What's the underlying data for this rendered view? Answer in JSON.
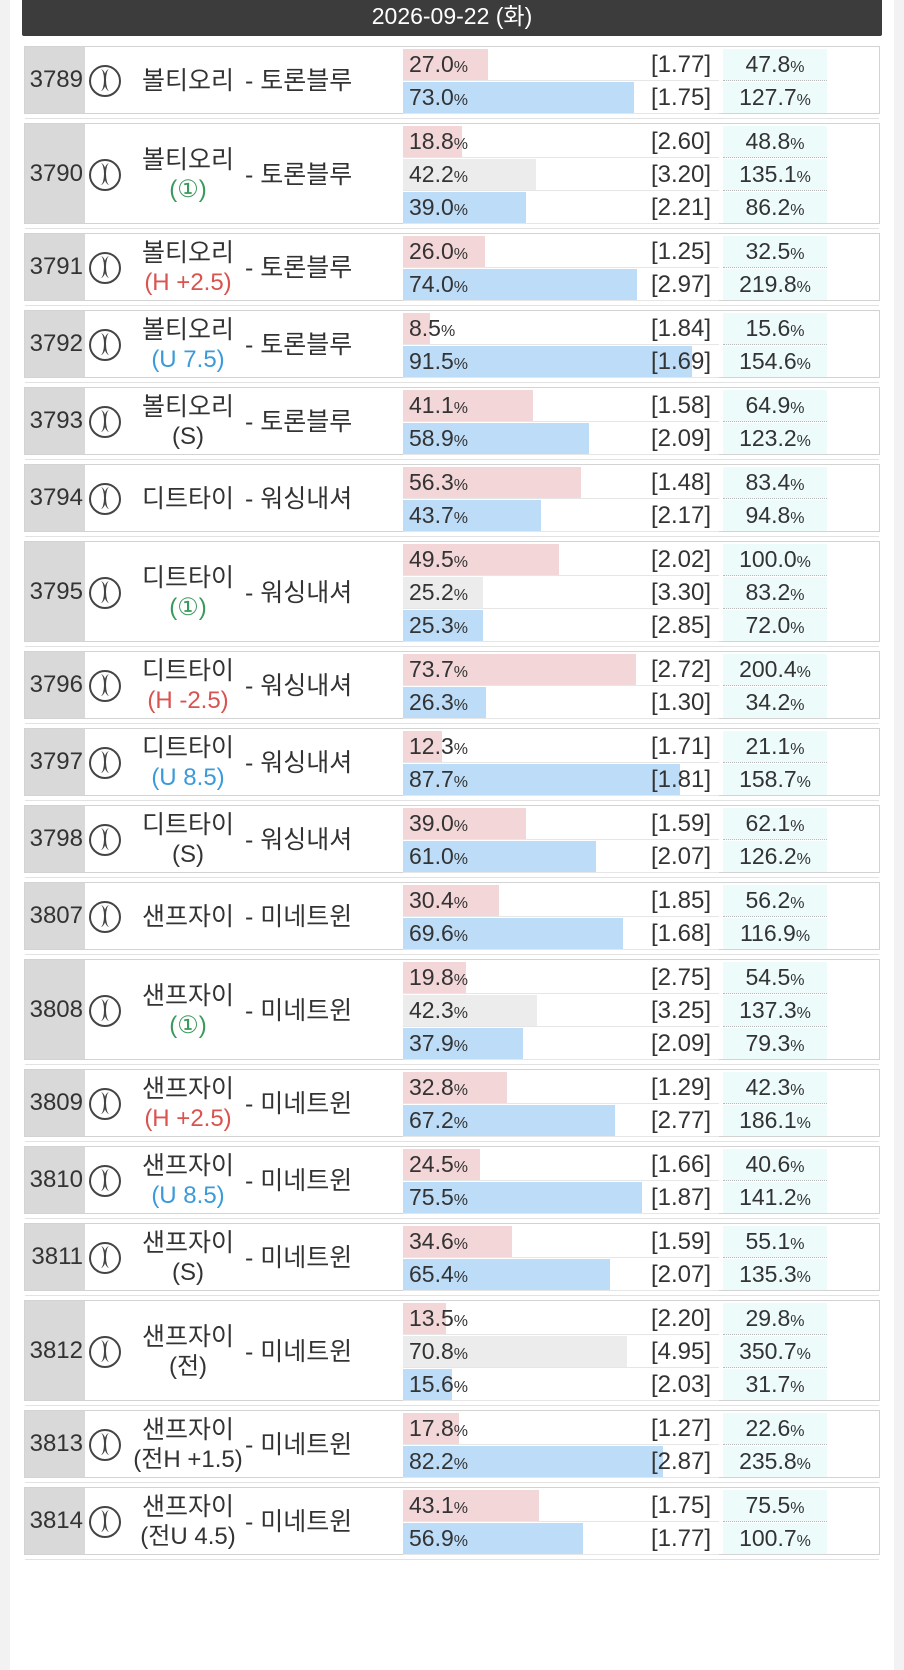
{
  "date": "2026-09-22 (화)",
  "colors": {
    "home": "#f3d6d8",
    "draw": "#ececec",
    "away": "#bcdcf8",
    "handicap": "#d9534f",
    "under": "#3b9ad9",
    "draw_label": "#3a9a5c"
  },
  "games": [
    {
      "num": "3789",
      "home": "볼티오리",
      "sub": "",
      "subColor": "",
      "away": "- 토론블루",
      "rows": [
        {
          "pct": "27.0",
          "odds": "[1.77]",
          "ret": "47.8",
          "type": "r",
          "fill": 0.27
        },
        {
          "pct": "73.0",
          "odds": "[1.75]",
          "ret": "127.7",
          "type": "b",
          "fill": 0.73
        }
      ]
    },
    {
      "num": "3790",
      "home": "볼티오리",
      "sub": "(①)",
      "subColor": "green",
      "away": "- 토론블루",
      "rows": [
        {
          "pct": "18.8",
          "odds": "[2.60]",
          "ret": "48.8",
          "type": "r",
          "fill": 0.188
        },
        {
          "pct": "42.2",
          "odds": "[3.20]",
          "ret": "135.1",
          "type": "g",
          "fill": 0.422
        },
        {
          "pct": "39.0",
          "odds": "[2.21]",
          "ret": "86.2",
          "type": "b",
          "fill": 0.39
        }
      ]
    },
    {
      "num": "3791",
      "home": "볼티오리",
      "sub": "(H +2.5)",
      "subColor": "red",
      "away": "- 토론블루",
      "rows": [
        {
          "pct": "26.0",
          "odds": "[1.25]",
          "ret": "32.5",
          "type": "r",
          "fill": 0.26
        },
        {
          "pct": "74.0",
          "odds": "[2.97]",
          "ret": "219.8",
          "type": "b",
          "fill": 0.74
        }
      ]
    },
    {
      "num": "3792",
      "home": "볼티오리",
      "sub": "(U 7.5)",
      "subColor": "blue",
      "away": "- 토론블루",
      "rows": [
        {
          "pct": "8.5",
          "odds": "[1.84]",
          "ret": "15.6",
          "type": "r",
          "fill": 0.085
        },
        {
          "pct": "91.5",
          "odds": "[1.69]",
          "ret": "154.6",
          "type": "b",
          "fill": 0.915
        }
      ]
    },
    {
      "num": "3793",
      "home": "볼티오리",
      "sub": "(S)",
      "subColor": "dark",
      "away": "- 토론블루",
      "rows": [
        {
          "pct": "41.1",
          "odds": "[1.58]",
          "ret": "64.9",
          "type": "r",
          "fill": 0.411
        },
        {
          "pct": "58.9",
          "odds": "[2.09]",
          "ret": "123.2",
          "type": "b",
          "fill": 0.589
        }
      ]
    },
    {
      "num": "3794",
      "home": "디트타이",
      "sub": "",
      "subColor": "",
      "away": "- 워싱내셔",
      "rows": [
        {
          "pct": "56.3",
          "odds": "[1.48]",
          "ret": "83.4",
          "type": "r",
          "fill": 0.563
        },
        {
          "pct": "43.7",
          "odds": "[2.17]",
          "ret": "94.8",
          "type": "b",
          "fill": 0.437
        }
      ]
    },
    {
      "num": "3795",
      "home": "디트타이",
      "sub": "(①)",
      "subColor": "green",
      "away": "- 워싱내셔",
      "rows": [
        {
          "pct": "49.5",
          "odds": "[2.02]",
          "ret": "100.0",
          "type": "r",
          "fill": 0.495
        },
        {
          "pct": "25.2",
          "odds": "[3.30]",
          "ret": "83.2",
          "type": "g",
          "fill": 0.252
        },
        {
          "pct": "25.3",
          "odds": "[2.85]",
          "ret": "72.0",
          "type": "b",
          "fill": 0.253
        }
      ]
    },
    {
      "num": "3796",
      "home": "디트타이",
      "sub": "(H -2.5)",
      "subColor": "red",
      "away": "- 워싱내셔",
      "rows": [
        {
          "pct": "73.7",
          "odds": "[2.72]",
          "ret": "200.4",
          "type": "r",
          "fill": 0.737
        },
        {
          "pct": "26.3",
          "odds": "[1.30]",
          "ret": "34.2",
          "type": "b",
          "fill": 0.263
        }
      ]
    },
    {
      "num": "3797",
      "home": "디트타이",
      "sub": "(U 8.5)",
      "subColor": "blue",
      "away": "- 워싱내셔",
      "rows": [
        {
          "pct": "12.3",
          "odds": "[1.71]",
          "ret": "21.1",
          "type": "r",
          "fill": 0.123
        },
        {
          "pct": "87.7",
          "odds": "[1.81]",
          "ret": "158.7",
          "type": "b",
          "fill": 0.877
        }
      ]
    },
    {
      "num": "3798",
      "home": "디트타이",
      "sub": "(S)",
      "subColor": "dark",
      "away": "- 워싱내셔",
      "rows": [
        {
          "pct": "39.0",
          "odds": "[1.59]",
          "ret": "62.1",
          "type": "r",
          "fill": 0.39
        },
        {
          "pct": "61.0",
          "odds": "[2.07]",
          "ret": "126.2",
          "type": "b",
          "fill": 0.61
        }
      ]
    },
    {
      "num": "3807",
      "home": "샌프자이",
      "sub": "",
      "subColor": "",
      "away": "- 미네트윈",
      "rows": [
        {
          "pct": "30.4",
          "odds": "[1.85]",
          "ret": "56.2",
          "type": "r",
          "fill": 0.304
        },
        {
          "pct": "69.6",
          "odds": "[1.68]",
          "ret": "116.9",
          "type": "b",
          "fill": 0.696
        }
      ]
    },
    {
      "num": "3808",
      "home": "샌프자이",
      "sub": "(①)",
      "subColor": "green",
      "away": "- 미네트윈",
      "rows": [
        {
          "pct": "19.8",
          "odds": "[2.75]",
          "ret": "54.5",
          "type": "r",
          "fill": 0.198
        },
        {
          "pct": "42.3",
          "odds": "[3.25]",
          "ret": "137.3",
          "type": "g",
          "fill": 0.423
        },
        {
          "pct": "37.9",
          "odds": "[2.09]",
          "ret": "79.3",
          "type": "b",
          "fill": 0.379
        }
      ]
    },
    {
      "num": "3809",
      "home": "샌프자이",
      "sub": "(H +2.5)",
      "subColor": "red",
      "away": "- 미네트윈",
      "rows": [
        {
          "pct": "32.8",
          "odds": "[1.29]",
          "ret": "42.3",
          "type": "r",
          "fill": 0.328
        },
        {
          "pct": "67.2",
          "odds": "[2.77]",
          "ret": "186.1",
          "type": "b",
          "fill": 0.672
        }
      ]
    },
    {
      "num": "3810",
      "home": "샌프자이",
      "sub": "(U 8.5)",
      "subColor": "blue",
      "away": "- 미네트윈",
      "rows": [
        {
          "pct": "24.5",
          "odds": "[1.66]",
          "ret": "40.6",
          "type": "r",
          "fill": 0.245
        },
        {
          "pct": "75.5",
          "odds": "[1.87]",
          "ret": "141.2",
          "type": "b",
          "fill": 0.755
        }
      ]
    },
    {
      "num": "3811",
      "home": "샌프자이",
      "sub": "(S)",
      "subColor": "dark",
      "away": "- 미네트윈",
      "rows": [
        {
          "pct": "34.6",
          "odds": "[1.59]",
          "ret": "55.1",
          "type": "r",
          "fill": 0.346
        },
        {
          "pct": "65.4",
          "odds": "[2.07]",
          "ret": "135.3",
          "type": "b",
          "fill": 0.654
        }
      ]
    },
    {
      "num": "3812",
      "home": "샌프자이",
      "sub": "(전)",
      "subColor": "dark",
      "away": "- 미네트윈",
      "rows": [
        {
          "pct": "13.5",
          "odds": "[2.20]",
          "ret": "29.8",
          "type": "r",
          "fill": 0.135
        },
        {
          "pct": "70.8",
          "odds": "[4.95]",
          "ret": "350.7",
          "type": "g",
          "fill": 0.708
        },
        {
          "pct": "15.6",
          "odds": "[2.03]",
          "ret": "31.7",
          "type": "b",
          "fill": 0.156
        }
      ]
    },
    {
      "num": "3813",
      "home": "샌프자이",
      "sub": "(전H +1.5)",
      "subColor": "dark",
      "away": "- 미네트윈",
      "rows": [
        {
          "pct": "17.8",
          "odds": "[1.27]",
          "ret": "22.6",
          "type": "r",
          "fill": 0.178
        },
        {
          "pct": "82.2",
          "odds": "[2.87]",
          "ret": "235.8",
          "type": "b",
          "fill": 0.822
        }
      ]
    },
    {
      "num": "3814",
      "home": "샌프자이",
      "sub": "(전U 4.5)",
      "subColor": "dark",
      "away": "- 미네트윈",
      "rows": [
        {
          "pct": "43.1",
          "odds": "[1.75]",
          "ret": "75.5",
          "type": "r",
          "fill": 0.431
        },
        {
          "pct": "56.9",
          "odds": "[1.77]",
          "ret": "100.7",
          "type": "b",
          "fill": 0.569
        }
      ]
    }
  ]
}
